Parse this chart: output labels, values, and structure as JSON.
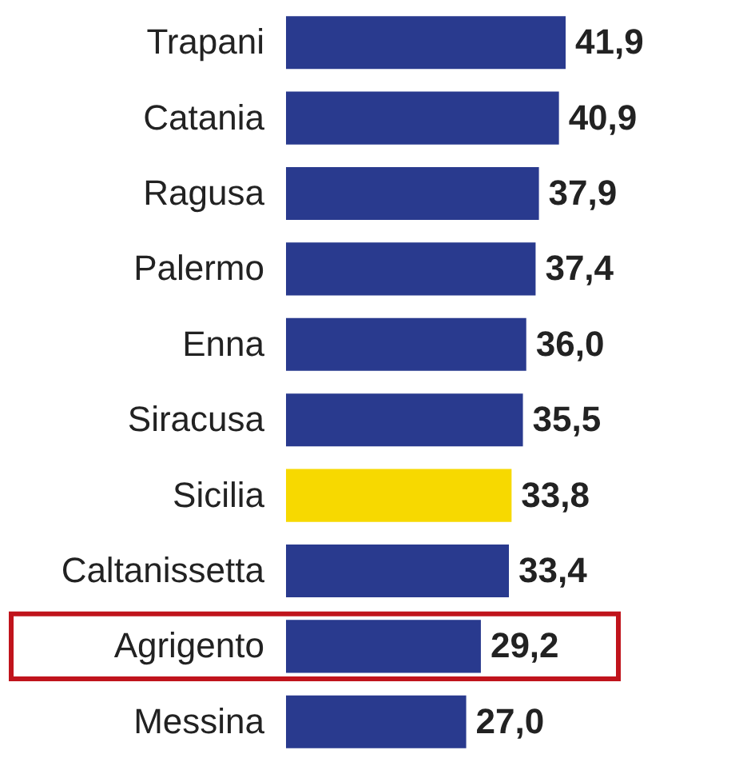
{
  "chart_data": {
    "type": "bar",
    "orientation": "horizontal",
    "categories": [
      "Trapani",
      "Catania",
      "Ragusa",
      "Palermo",
      "Enna",
      "Siracusa",
      "Sicilia",
      "Caltanissetta",
      "Agrigento",
      "Messina"
    ],
    "values": [
      41.9,
      40.9,
      37.9,
      37.4,
      36.0,
      35.5,
      33.8,
      33.4,
      29.2,
      27.0
    ],
    "colors": [
      "#293a8e",
      "#293a8e",
      "#293a8e",
      "#293a8e",
      "#293a8e",
      "#293a8e",
      "#f7d900",
      "#293a8e",
      "#293a8e",
      "#293a8e"
    ],
    "value_labels": [
      "41,9",
      "40,9",
      "37,9",
      "37,4",
      "36,0",
      "35,5",
      "33,8",
      "33,4",
      "29,2",
      "27,0"
    ],
    "grid": false,
    "tick_labels": "y"
  }
}
